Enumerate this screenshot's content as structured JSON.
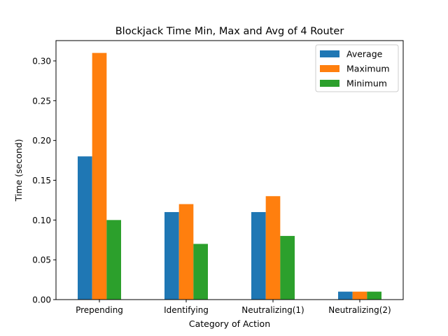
{
  "chart_data": {
    "type": "bar",
    "title": "Blockjack Time Min, Max and Avg of 4 Router",
    "xlabel": "Category of Action",
    "ylabel": "Time (second)",
    "categories": [
      "Prepending",
      "Identifying",
      "Neutralizing(1)",
      "Neutralizing(2)"
    ],
    "series": [
      {
        "name": "Average",
        "color": "#1f77b4",
        "values": [
          0.18,
          0.11,
          0.11,
          0.01
        ]
      },
      {
        "name": "Maximum",
        "color": "#ff7f0e",
        "values": [
          0.31,
          0.12,
          0.13,
          0.01
        ]
      },
      {
        "name": "Minimum",
        "color": "#2ca02c",
        "values": [
          0.1,
          0.07,
          0.08,
          0.01
        ]
      }
    ],
    "ylim": [
      0,
      0.3255
    ],
    "yticks": [
      0.0,
      0.05,
      0.1,
      0.15,
      0.2,
      0.25,
      0.3
    ],
    "ytick_labels": [
      "0.00",
      "0.05",
      "0.10",
      "0.15",
      "0.20",
      "0.25",
      "0.30"
    ],
    "grid": false,
    "legend_position": "top-right"
  }
}
